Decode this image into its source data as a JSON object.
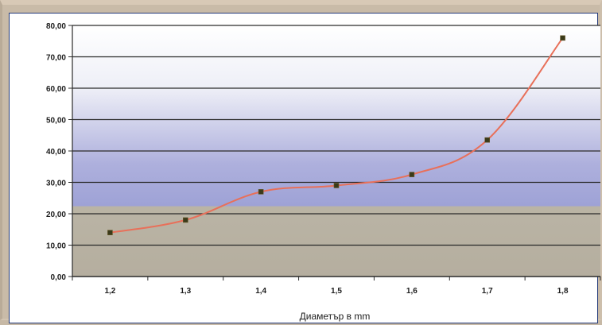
{
  "chart_data": {
    "type": "line",
    "categories": [
      "1,2",
      "1,3",
      "1,4",
      "1,5",
      "1,6",
      "1,7",
      "1,8"
    ],
    "values": [
      14,
      18,
      27,
      29,
      32.5,
      43.5,
      76
    ],
    "title": "",
    "xlabel": "Диаметър в mm",
    "ylabel": "",
    "ylim": [
      0,
      80
    ],
    "yticks": [
      "0,00",
      "10,00",
      "20,00",
      "30,00",
      "40,00",
      "50,00",
      "60,00",
      "70,00",
      "80,00"
    ],
    "grid": true,
    "line_color": "#e8705a",
    "marker_color": "#3a3a1a",
    "background_gradient": [
      "#ffffff",
      "#9fa3d8",
      "#bdb8aa"
    ]
  }
}
